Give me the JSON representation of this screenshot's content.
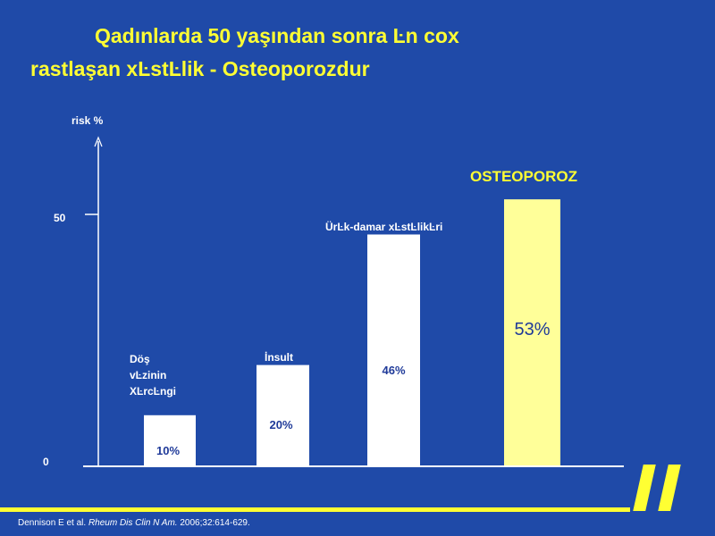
{
  "title_line1": "Qadınlarda 50 yaşından sonra Ŀn cox",
  "title_line2": "rastlaşan  xĿstĿlik - Osteoporozdur",
  "citation": {
    "authors": "Dennison E et al. ",
    "journal": "Rheum Dis Clin N Am.",
    "details": " 2006;32:614-629."
  },
  "colors": {
    "background": "#1f4aa8",
    "title": "#ffff33",
    "bar_default": "#ffffff",
    "bar_highlight": "#ffff99",
    "value_text": "#1f3a99"
  },
  "chart_data": {
    "type": "bar",
    "ylabel": "risk %",
    "y_ticks": [
      "0",
      "50"
    ],
    "ylim": [
      0,
      68
    ],
    "grid": false,
    "bars": [
      {
        "value": 10,
        "value_label": "10%",
        "label_lines": [
          "Döş",
          "vĿzinin",
          "XĿrcĿngi"
        ]
      },
      {
        "value": 20,
        "value_label": "20%",
        "label_lines": [
          "İnsult"
        ]
      },
      {
        "value": 46,
        "value_label": "46%",
        "label_lines": [
          "ÜrĿk-damar xĿstĿlikĿri"
        ]
      },
      {
        "value": 53,
        "value_label": "53%",
        "label_lines": [
          "OSTEOPOROZ"
        ],
        "highlight": true
      }
    ]
  }
}
